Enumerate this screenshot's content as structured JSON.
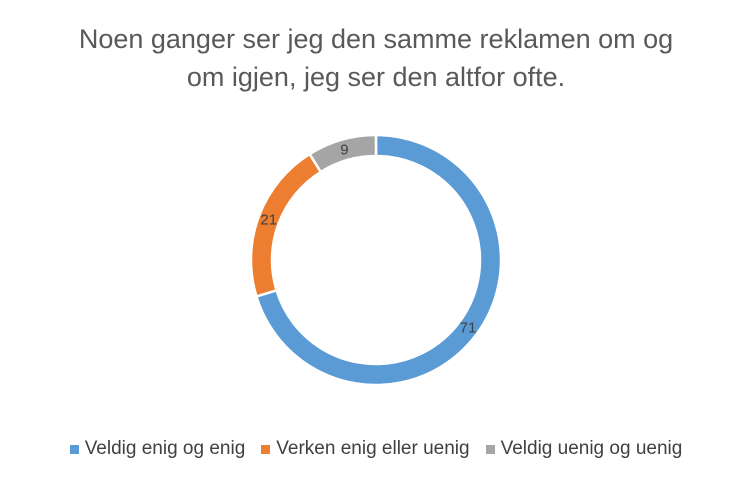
{
  "chart_data": {
    "type": "donut",
    "title_lines": [
      "Noen ganger ser jeg den samme reklamen om og",
      "om igjen, jeg ser den altfor ofte."
    ],
    "categories": [
      "Veldig enig og enig",
      "Verken enig eller uenig",
      "Veldig uenig og uenig"
    ],
    "values": [
      71,
      21,
      9
    ],
    "data_labels": [
      "71",
      "21",
      "9"
    ],
    "colors": [
      "#5B9BD5",
      "#ED7D31",
      "#A5A5A5"
    ],
    "legend_position": "bottom"
  }
}
